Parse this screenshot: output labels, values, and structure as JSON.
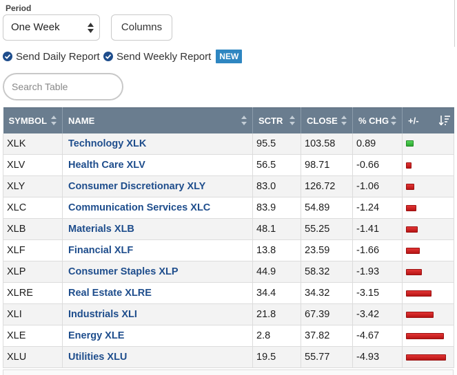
{
  "period": {
    "label": "Period",
    "selected": "One Week"
  },
  "columns_button": "Columns",
  "reports": {
    "daily": "Send Daily Report",
    "weekly": "Send Weekly Report",
    "new_badge": "NEW"
  },
  "search": {
    "placeholder": "Search Table"
  },
  "colors": {
    "header_bg": "#6a7d8f",
    "link": "#1e4d8c",
    "badge": "#2e86c1",
    "positive_bar": "#3cbf3f",
    "negative_bar": "#cc2222"
  },
  "table": {
    "headers": {
      "symbol": "SYMBOL",
      "name": "NAME",
      "sctr": "SCTR",
      "close": "CLOSE",
      "pct_chg": "% CHG",
      "plus_minus": "+/-"
    },
    "rows": [
      {
        "symbol": "XLK",
        "name": "Technology XLK",
        "sctr": "95.5",
        "close": "103.58",
        "pct_chg": "0.89",
        "change": 0.89
      },
      {
        "symbol": "XLV",
        "name": "Health Care XLV",
        "sctr": "56.5",
        "close": "98.71",
        "pct_chg": "-0.66",
        "change": -0.66
      },
      {
        "symbol": "XLY",
        "name": "Consumer Discretionary XLY",
        "sctr": "83.0",
        "close": "126.72",
        "pct_chg": "-1.06",
        "change": -1.06
      },
      {
        "symbol": "XLC",
        "name": "Communication Services XLC",
        "sctr": "83.9",
        "close": "54.89",
        "pct_chg": "-1.24",
        "change": -1.24
      },
      {
        "symbol": "XLB",
        "name": "Materials XLB",
        "sctr": "48.1",
        "close": "55.25",
        "pct_chg": "-1.41",
        "change": -1.41
      },
      {
        "symbol": "XLF",
        "name": "Financial XLF",
        "sctr": "13.8",
        "close": "23.59",
        "pct_chg": "-1.66",
        "change": -1.66
      },
      {
        "symbol": "XLP",
        "name": "Consumer Staples XLP",
        "sctr": "44.9",
        "close": "58.32",
        "pct_chg": "-1.93",
        "change": -1.93
      },
      {
        "symbol": "XLRE",
        "name": "Real Estate XLRE",
        "sctr": "34.4",
        "close": "34.32",
        "pct_chg": "-3.15",
        "change": -3.15
      },
      {
        "symbol": "XLI",
        "name": "Industrials XLI",
        "sctr": "21.8",
        "close": "67.39",
        "pct_chg": "-3.42",
        "change": -3.42
      },
      {
        "symbol": "XLE",
        "name": "Energy XLE",
        "sctr": "2.8",
        "close": "37.82",
        "pct_chg": "-4.67",
        "change": -4.67
      },
      {
        "symbol": "XLU",
        "name": "Utilities XLU",
        "sctr": "19.5",
        "close": "55.77",
        "pct_chg": "-4.93",
        "change": -4.93
      }
    ]
  }
}
